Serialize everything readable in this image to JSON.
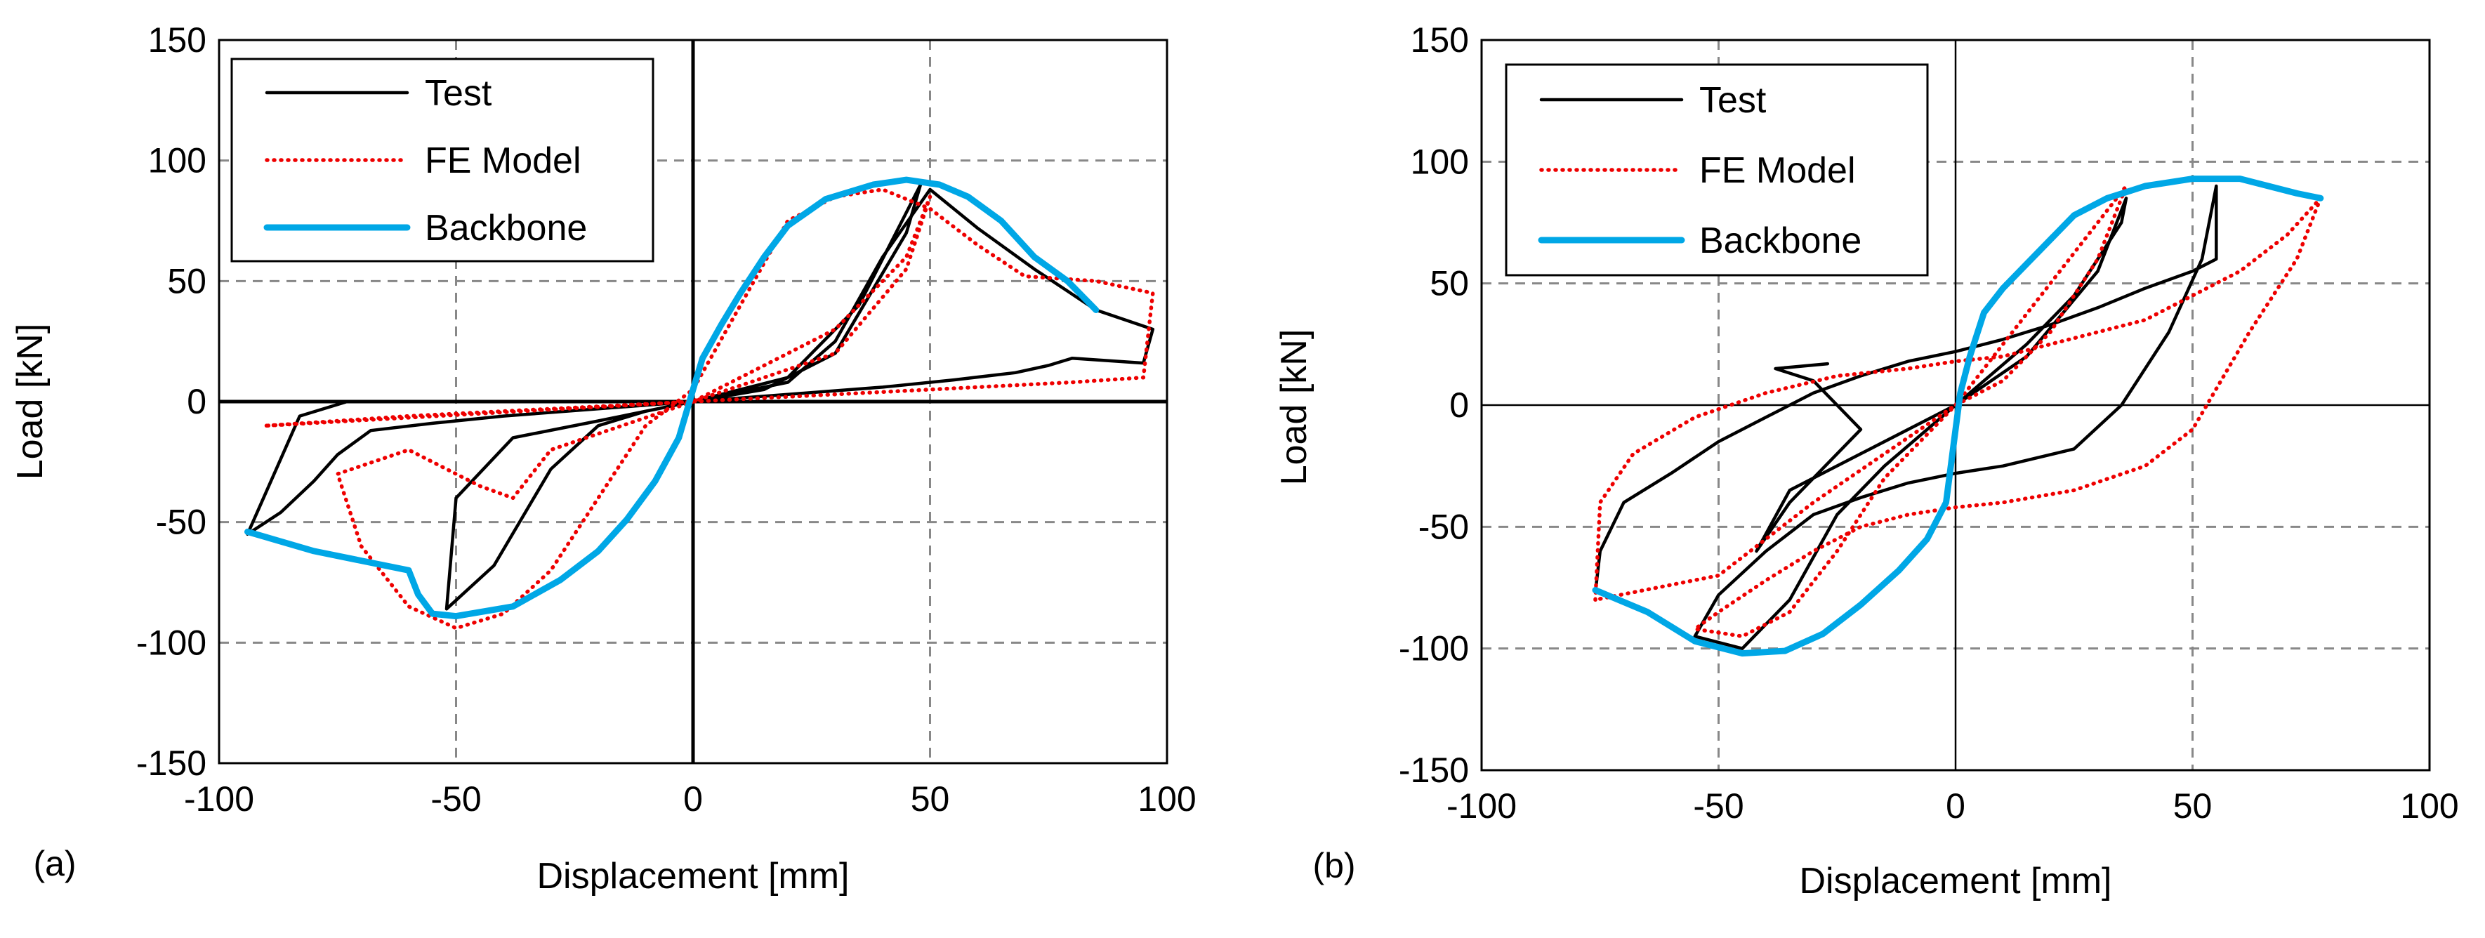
{
  "chart_data": [
    {
      "type": "line",
      "panel_label": "(a)",
      "xlabel": "Displacement [mm]",
      "ylabel": "Load [kN]",
      "xlim": [
        -100,
        100
      ],
      "ylim": [
        -150,
        150
      ],
      "xticks": [
        -100,
        -50,
        0,
        50,
        100
      ],
      "yticks": [
        150,
        100,
        50,
        0,
        -50,
        -100,
        -150
      ],
      "xtick_labels": [
        "-100",
        "-50",
        "0",
        "50",
        "100"
      ],
      "ytick_labels": [
        "150",
        "100",
        "50",
        "0",
        "-50",
        "-100",
        "-150"
      ],
      "grid": "dashed",
      "zero_axes_line": "thick",
      "legend": {
        "position": "top-left",
        "entries": [
          "Test",
          "FE Model",
          "Backbone"
        ]
      },
      "series": [
        {
          "name": "Test",
          "style": "solid",
          "color": "#000000",
          "points": [
            [
              -100,
              0
            ],
            [
              -73,
              0
            ],
            [
              -83,
              -6
            ],
            [
              -94,
              -55
            ],
            [
              -87,
              -46
            ],
            [
              -80,
              -33
            ],
            [
              -75,
              -22
            ],
            [
              -68,
              -12
            ],
            [
              -55,
              -9
            ],
            [
              -40,
              -6
            ],
            [
              -20,
              -3
            ],
            [
              0,
              0
            ],
            [
              20,
              3
            ],
            [
              40,
              6
            ],
            [
              55,
              9
            ],
            [
              68,
              12
            ],
            [
              75,
              15
            ],
            [
              80,
              18
            ],
            [
              95,
              16
            ],
            [
              97,
              30
            ],
            [
              85,
              38
            ],
            [
              72,
              55
            ],
            [
              60,
              72
            ],
            [
              50,
              88
            ],
            [
              40,
              60
            ],
            [
              30,
              25
            ],
            [
              20,
              8
            ],
            [
              10,
              4
            ],
            [
              0,
              0
            ],
            [
              -10,
              -4
            ],
            [
              -20,
              -10
            ],
            [
              -30,
              -28
            ],
            [
              -42,
              -68
            ],
            [
              -52,
              -86
            ],
            [
              -50,
              -40
            ],
            [
              -38,
              -15
            ],
            [
              -20,
              -8
            ],
            [
              0,
              0
            ],
            [
              15,
              5
            ],
            [
              30,
              20
            ],
            [
              45,
              70
            ],
            [
              48,
              90
            ],
            [
              35,
              40
            ],
            [
              20,
              10
            ],
            [
              0,
              0
            ],
            [
              -100,
              0
            ]
          ]
        },
        {
          "name": "FE Model",
          "style": "dotted",
          "color": "#ee0000",
          "points": [
            [
              -90,
              -10
            ],
            [
              -75,
              -8
            ],
            [
              -60,
              -6
            ],
            [
              -40,
              -4
            ],
            [
              -20,
              -2
            ],
            [
              0,
              0
            ],
            [
              20,
              2
            ],
            [
              40,
              4
            ],
            [
              60,
              6
            ],
            [
              80,
              8
            ],
            [
              95,
              10
            ],
            [
              97,
              45
            ],
            [
              85,
              50
            ],
            [
              70,
              52
            ],
            [
              60,
              65
            ],
            [
              50,
              80
            ],
            [
              40,
              88
            ],
            [
              30,
              85
            ],
            [
              20,
              75
            ],
            [
              10,
              40
            ],
            [
              0,
              5
            ],
            [
              -10,
              -10
            ],
            [
              -20,
              -40
            ],
            [
              -30,
              -70
            ],
            [
              -40,
              -88
            ],
            [
              -50,
              -94
            ],
            [
              -60,
              -85
            ],
            [
              -70,
              -60
            ],
            [
              -75,
              -30
            ],
            [
              -60,
              -20
            ],
            [
              -45,
              -35
            ],
            [
              -38,
              -40
            ],
            [
              -30,
              -20
            ],
            [
              -15,
              -10
            ],
            [
              0,
              0
            ],
            [
              15,
              10
            ],
            [
              30,
              20
            ],
            [
              45,
              55
            ],
            [
              50,
              85
            ],
            [
              45,
              60
            ],
            [
              30,
              30
            ],
            [
              15,
              15
            ],
            [
              0,
              0
            ],
            [
              -90,
              -10
            ]
          ]
        },
        {
          "name": "Backbone",
          "style": "solid-thick",
          "color": "#00a7e6",
          "points": [
            [
              -94,
              -54
            ],
            [
              -80,
              -62
            ],
            [
              -70,
              -66
            ],
            [
              -60,
              -70
            ],
            [
              -58,
              -80
            ],
            [
              -55,
              -88
            ],
            [
              -50,
              -89
            ],
            [
              -38,
              -85
            ],
            [
              -28,
              -74
            ],
            [
              -20,
              -62
            ],
            [
              -14,
              -49
            ],
            [
              -8,
              -33
            ],
            [
              -3,
              -15
            ],
            [
              0,
              5
            ],
            [
              2,
              18
            ],
            [
              6,
              32
            ],
            [
              10,
              45
            ],
            [
              15,
              60
            ],
            [
              20,
              73
            ],
            [
              28,
              84
            ],
            [
              38,
              90
            ],
            [
              45,
              92
            ],
            [
              52,
              90
            ],
            [
              58,
              85
            ],
            [
              65,
              75
            ],
            [
              72,
              60
            ],
            [
              79,
              50
            ],
            [
              85,
              38
            ]
          ]
        }
      ]
    },
    {
      "type": "line",
      "panel_label": "(b)",
      "xlabel": "Displacement [mm]",
      "ylabel": "Load [kN]",
      "xlim": [
        -100,
        100
      ],
      "ylim": [
        -150,
        150
      ],
      "xticks": [
        -100,
        -50,
        0,
        50,
        100
      ],
      "yticks": [
        150,
        100,
        50,
        0,
        -50,
        -100,
        -150
      ],
      "xtick_labels": [
        "-100",
        "-50",
        "0",
        "50",
        "100"
      ],
      "ytick_labels": [
        "150",
        "100",
        "50",
        "0",
        "-50",
        "-100",
        "-150"
      ],
      "grid": "dashed",
      "zero_axes_line": "thin",
      "legend": {
        "position": "top-left",
        "entries": [
          "Test",
          "FE Model",
          "Backbone"
        ]
      },
      "series": [
        {
          "name": "Test",
          "style": "solid",
          "color": "#000000",
          "points": [
            [
              -76,
              -77
            ],
            [
              -75,
              -60
            ],
            [
              -70,
              -40
            ],
            [
              -60,
              -28
            ],
            [
              -50,
              -15
            ],
            [
              -40,
              -5
            ],
            [
              -30,
              5
            ],
            [
              -20,
              12
            ],
            [
              -10,
              18
            ],
            [
              0,
              22
            ],
            [
              10,
              27
            ],
            [
              20,
              33
            ],
            [
              30,
              40
            ],
            [
              40,
              48
            ],
            [
              50,
              55
            ],
            [
              55,
              60
            ],
            [
              55,
              90
            ],
            [
              52,
              60
            ],
            [
              45,
              30
            ],
            [
              35,
              0
            ],
            [
              25,
              -18
            ],
            [
              10,
              -25
            ],
            [
              0,
              -28
            ],
            [
              -10,
              -32
            ],
            [
              -20,
              -38
            ],
            [
              -30,
              -45
            ],
            [
              -40,
              -60
            ],
            [
              -50,
              -78
            ],
            [
              -55,
              -95
            ],
            [
              -45,
              -100
            ],
            [
              -35,
              -80
            ],
            [
              -25,
              -45
            ],
            [
              -15,
              -25
            ],
            [
              0,
              0
            ],
            [
              15,
              25
            ],
            [
              25,
              45
            ],
            [
              35,
              75
            ],
            [
              36,
              85
            ],
            [
              30,
              55
            ],
            [
              15,
              20
            ],
            [
              0,
              0
            ],
            [
              -20,
              -20
            ],
            [
              -35,
              -35
            ],
            [
              -42,
              -60
            ],
            [
              -35,
              -40
            ],
            [
              -20,
              -10
            ],
            [
              -30,
              10
            ],
            [
              -38,
              15
            ],
            [
              -27,
              17
            ]
          ]
        },
        {
          "name": "FE Model",
          "style": "dotted",
          "color": "#ee0000",
          "points": [
            [
              -76,
              -80
            ],
            [
              -75,
              -40
            ],
            [
              -68,
              -20
            ],
            [
              -55,
              -5
            ],
            [
              -40,
              5
            ],
            [
              -25,
              12
            ],
            [
              -10,
              15
            ],
            [
              0,
              18
            ],
            [
              10,
              20
            ],
            [
              20,
              25
            ],
            [
              30,
              30
            ],
            [
              40,
              35
            ],
            [
              50,
              45
            ],
            [
              60,
              55
            ],
            [
              70,
              70
            ],
            [
              77,
              85
            ],
            [
              72,
              60
            ],
            [
              62,
              30
            ],
            [
              50,
              -10
            ],
            [
              40,
              -25
            ],
            [
              25,
              -35
            ],
            [
              10,
              -40
            ],
            [
              0,
              -42
            ],
            [
              -10,
              -45
            ],
            [
              -20,
              -50
            ],
            [
              -30,
              -60
            ],
            [
              -40,
              -72
            ],
            [
              -50,
              -85
            ],
            [
              -55,
              -92
            ],
            [
              -45,
              -95
            ],
            [
              -35,
              -85
            ],
            [
              -25,
              -60
            ],
            [
              -15,
              -30
            ],
            [
              0,
              0
            ],
            [
              10,
              25
            ],
            [
              20,
              50
            ],
            [
              30,
              75
            ],
            [
              36,
              90
            ],
            [
              30,
              60
            ],
            [
              20,
              30
            ],
            [
              10,
              10
            ],
            [
              0,
              0
            ],
            [
              -15,
              -20
            ],
            [
              -30,
              -40
            ],
            [
              -50,
              -70
            ],
            [
              -76,
              -80
            ]
          ]
        },
        {
          "name": "Backbone",
          "style": "solid-thick",
          "color": "#00a7e6",
          "points": [
            [
              -76,
              -76
            ],
            [
              -65,
              -85
            ],
            [
              -55,
              -97
            ],
            [
              -45,
              -102
            ],
            [
              -36,
              -101
            ],
            [
              -28,
              -94
            ],
            [
              -20,
              -82
            ],
            [
              -12,
              -68
            ],
            [
              -6,
              -55
            ],
            [
              -2,
              -40
            ],
            [
              0,
              -10
            ],
            [
              1,
              5
            ],
            [
              3,
              20
            ],
            [
              6,
              38
            ],
            [
              10,
              48
            ],
            [
              15,
              58
            ],
            [
              20,
              68
            ],
            [
              25,
              78
            ],
            [
              32,
              85
            ],
            [
              40,
              90
            ],
            [
              50,
              93
            ],
            [
              60,
              93
            ],
            [
              66,
              90
            ],
            [
              72,
              87
            ],
            [
              77,
              85
            ]
          ]
        }
      ]
    }
  ]
}
